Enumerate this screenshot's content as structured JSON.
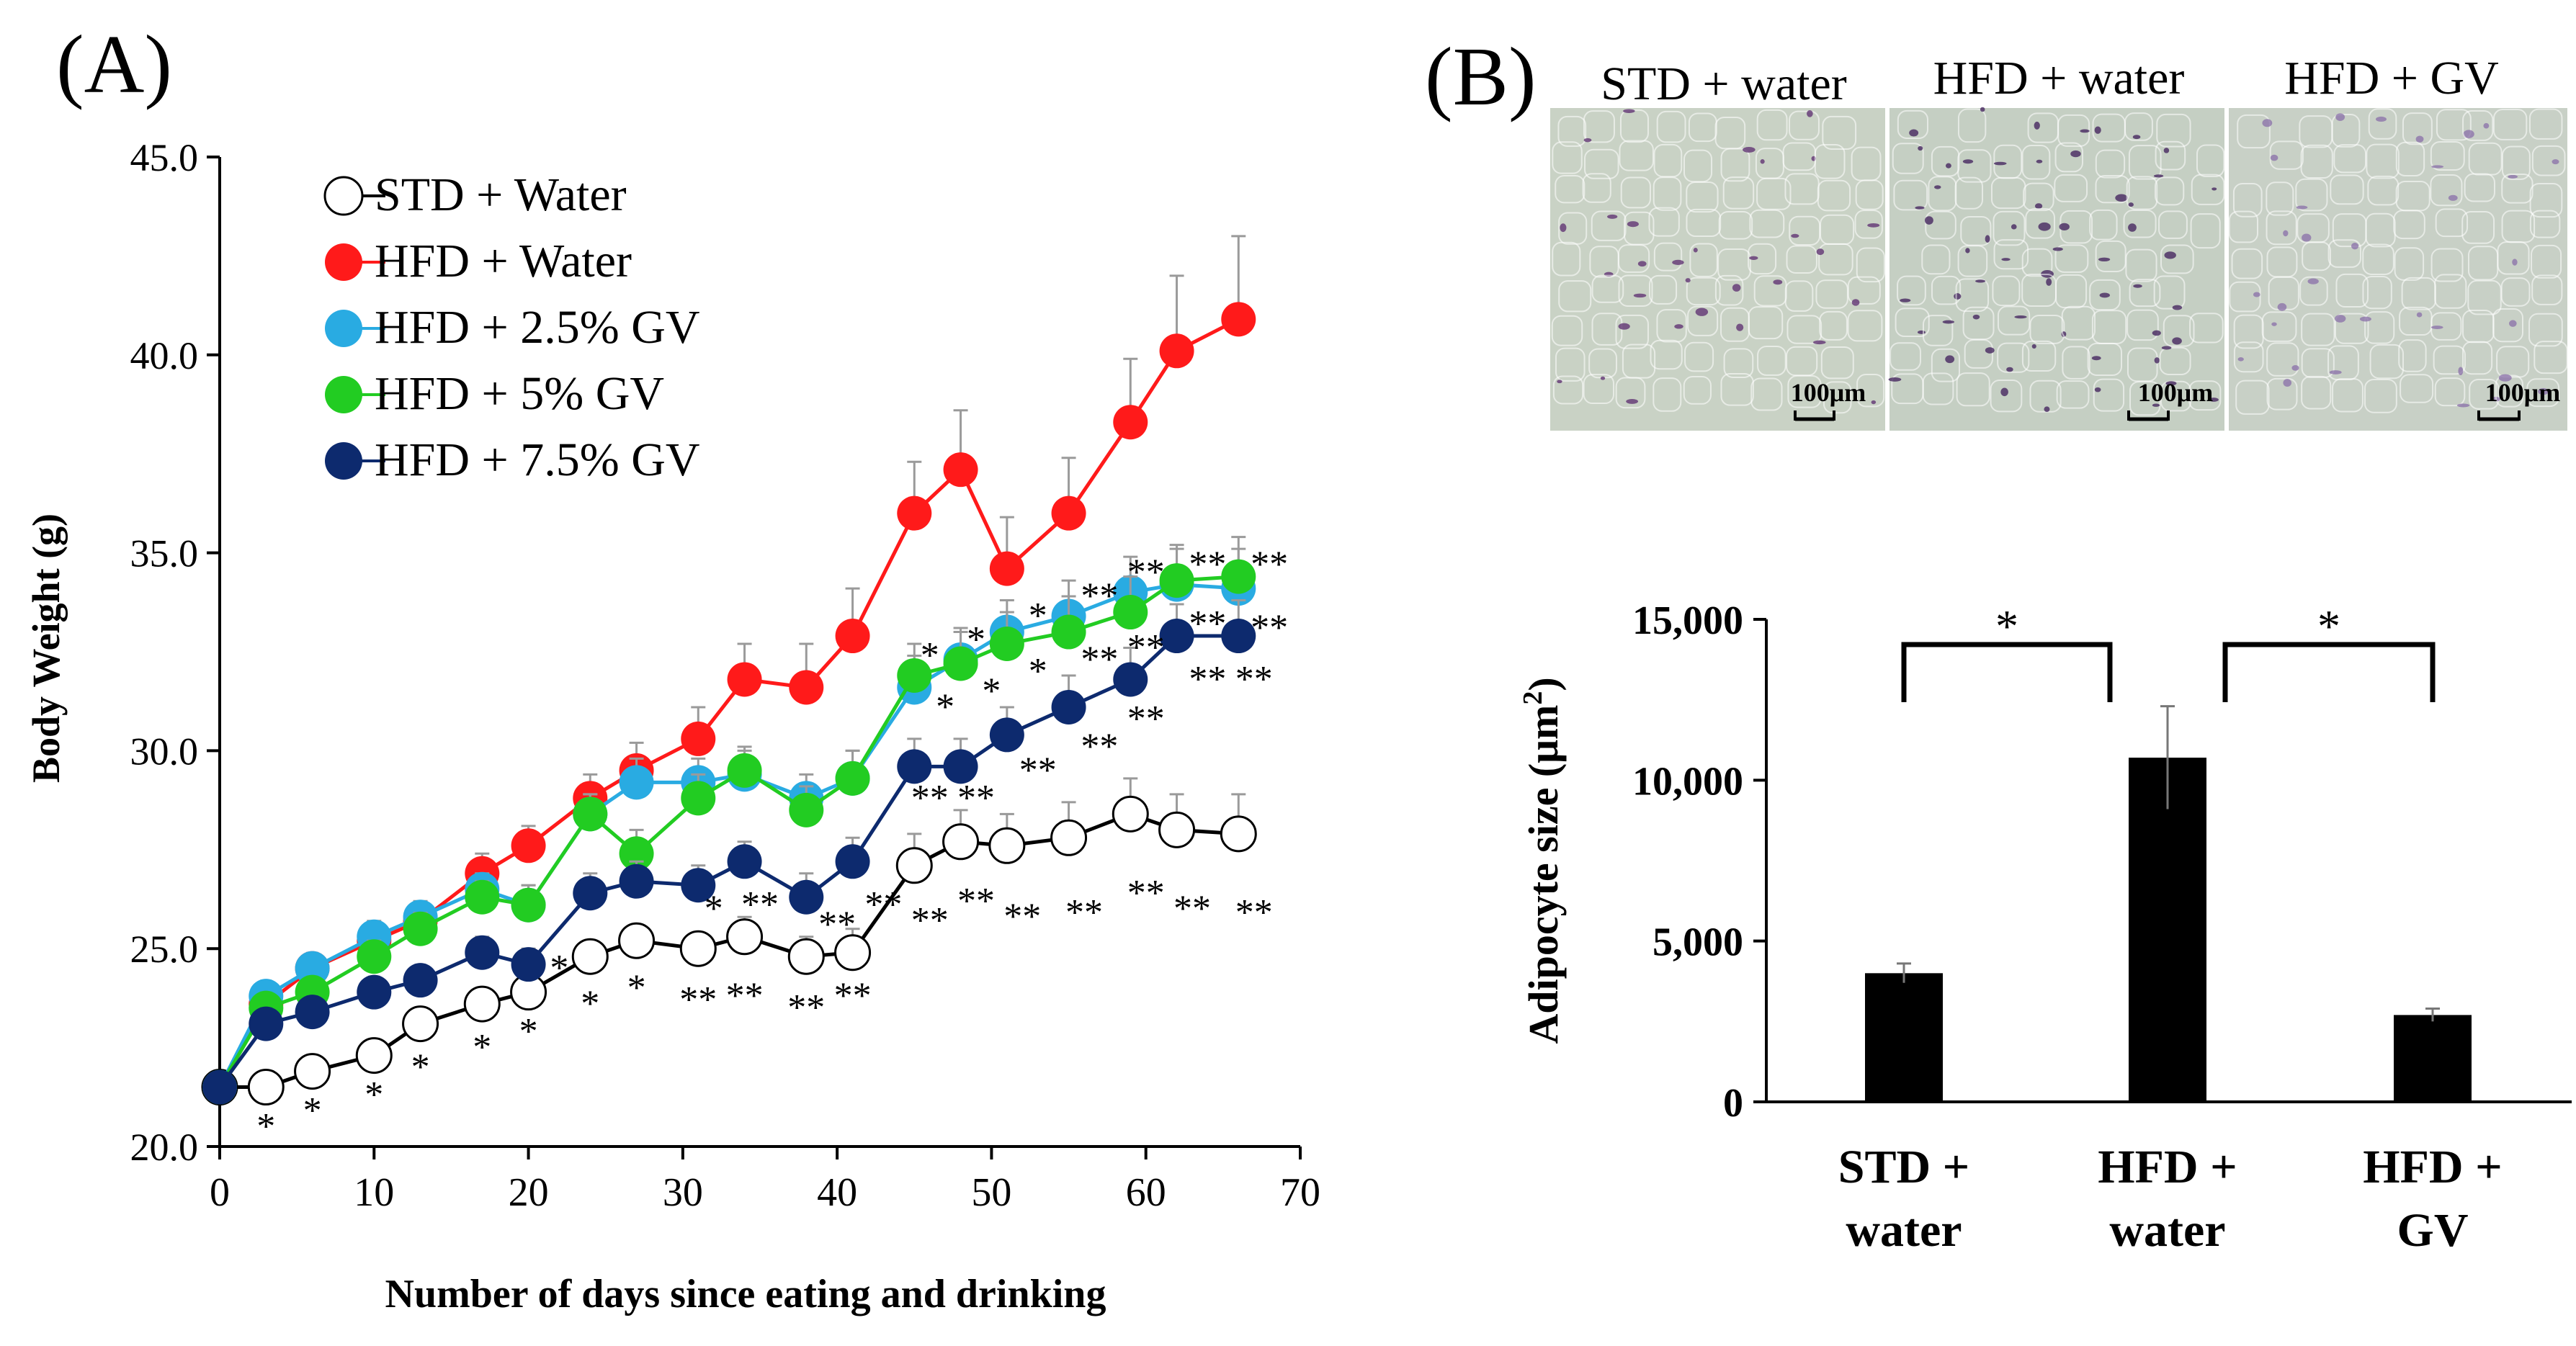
{
  "figure": {
    "panel_a_label": "(A)",
    "panel_b_label": "(B)"
  },
  "micrographs": [
    {
      "title": "STD + water",
      "scale_bar": "100μm",
      "tint": "#c9d2c5",
      "stain": "#5a2a6e",
      "density": 0.35
    },
    {
      "title": "HFD + water",
      "scale_bar": "100μm",
      "tint": "#c5cfc3",
      "stain": "#3d1c5a",
      "density": 0.7
    },
    {
      "title": "HFD + GV",
      "scale_bar": "100μm",
      "tint": "#c8d0c6",
      "stain": "#8a6fa8",
      "density": 0.45
    }
  ],
  "chart_data": [
    {
      "type": "line",
      "xlabel": "Number of days since eating and drinking",
      "ylabel": "Body Weight (g)",
      "xlim": [
        0,
        70
      ],
      "ylim": [
        20,
        45
      ],
      "xticks": [
        "0",
        "10",
        "20",
        "30",
        "40",
        "50",
        "60",
        "70"
      ],
      "yticks": [
        "20.0",
        "25.0",
        "30.0",
        "35.0",
        "40.0",
        "45.0"
      ],
      "legend_position": "top-left",
      "x": [
        0,
        3,
        6,
        10,
        13,
        17,
        20,
        24,
        27,
        31,
        34,
        38,
        41,
        45,
        48,
        51,
        55,
        59,
        62,
        66
      ],
      "series": [
        {
          "name": "STD + Water",
          "color": "#000000",
          "fill": "#ffffff",
          "line": "#000000",
          "values": [
            21.5,
            21.5,
            21.9,
            22.3,
            23.1,
            23.6,
            23.9,
            24.8,
            25.2,
            25.0,
            25.3,
            24.8,
            24.9,
            27.1,
            27.7,
            27.6,
            27.8,
            28.4,
            28.0,
            27.9
          ],
          "errors": [
            0,
            0.3,
            0.3,
            0.3,
            0.3,
            0.3,
            0.3,
            0.4,
            0.4,
            0.4,
            0.5,
            0.5,
            0.6,
            0.8,
            0.8,
            0.8,
            0.9,
            0.9,
            0.9,
            1.0
          ]
        },
        {
          "name": "HFD + Water",
          "color": "#ff1a1a",
          "fill": "#ff1a1a",
          "line": "#ff1a1a",
          "values": [
            21.5,
            23.6,
            24.5,
            25.2,
            25.7,
            26.9,
            27.6,
            28.8,
            29.5,
            30.3,
            31.8,
            31.6,
            32.9,
            36.0,
            37.1,
            34.6,
            36.0,
            38.3,
            40.1,
            40.9
          ],
          "errors": [
            0,
            0.3,
            0.3,
            0.4,
            0.4,
            0.5,
            0.5,
            0.6,
            0.7,
            0.8,
            0.9,
            1.1,
            1.2,
            1.3,
            1.5,
            1.3,
            1.4,
            1.6,
            1.9,
            2.1
          ]
        },
        {
          "name": "HFD + 2.5% GV",
          "color": "#29abe2",
          "fill": "#29abe2",
          "line": "#29abe2",
          "values": [
            21.5,
            23.8,
            24.5,
            25.3,
            25.8,
            26.5,
            26.1,
            28.4,
            29.2,
            29.2,
            29.4,
            28.8,
            29.3,
            31.6,
            32.3,
            33.0,
            33.4,
            34.0,
            34.2,
            34.1
          ],
          "errors": [
            0,
            0.3,
            0.3,
            0.4,
            0.4,
            0.4,
            0.5,
            0.5,
            0.6,
            0.6,
            0.6,
            0.6,
            0.7,
            0.8,
            0.8,
            0.8,
            0.9,
            0.9,
            0.9,
            1.0
          ]
        },
        {
          "name": "HFD + 5% GV",
          "color": "#22cc22",
          "fill": "#22cc22",
          "line": "#22cc22",
          "values": [
            21.5,
            23.5,
            23.9,
            24.8,
            25.5,
            26.3,
            26.1,
            28.4,
            27.4,
            28.8,
            29.5,
            28.5,
            29.3,
            31.9,
            32.2,
            32.7,
            33.0,
            33.5,
            34.3,
            34.4
          ],
          "errors": [
            0,
            0.3,
            0.3,
            0.4,
            0.4,
            0.4,
            0.5,
            0.5,
            0.6,
            0.6,
            0.6,
            0.6,
            0.7,
            0.8,
            0.8,
            0.8,
            0.9,
            0.9,
            0.9,
            1.0
          ]
        },
        {
          "name": "HFD + 7.5% GV",
          "color": "#0d2a6e",
          "fill": "#0d2a6e",
          "line": "#0d2a6e",
          "values": [
            21.5,
            23.1,
            23.4,
            23.9,
            24.2,
            24.9,
            24.6,
            26.4,
            26.7,
            26.6,
            27.2,
            26.3,
            27.2,
            29.6,
            29.6,
            30.4,
            31.1,
            31.8,
            32.9,
            32.9
          ],
          "errors": [
            0,
            0.3,
            0.3,
            0.3,
            0.3,
            0.4,
            0.4,
            0.5,
            0.5,
            0.5,
            0.5,
            0.6,
            0.6,
            0.7,
            0.7,
            0.7,
            0.8,
            0.8,
            0.8,
            0.9
          ]
        }
      ],
      "annotations": [
        {
          "text": "*",
          "x": 3,
          "y": 20.6
        },
        {
          "text": "*",
          "x": 6,
          "y": 21.0
        },
        {
          "text": "*",
          "x": 10,
          "y": 21.4
        },
        {
          "text": "*",
          "x": 13,
          "y": 22.1
        },
        {
          "text": "*",
          "x": 17,
          "y": 22.6
        },
        {
          "text": "*",
          "x": 20,
          "y": 23.0
        },
        {
          "text": "*",
          "x": 22,
          "y": 24.6
        },
        {
          "text": "*",
          "x": 24,
          "y": 23.7
        },
        {
          "text": "*",
          "x": 27,
          "y": 24.1
        },
        {
          "text": "*",
          "x": 32,
          "y": 26.1
        },
        {
          "text": "**",
          "x": 31,
          "y": 23.8
        },
        {
          "text": "**",
          "x": 34,
          "y": 23.9
        },
        {
          "text": "**",
          "x": 38,
          "y": 23.6
        },
        {
          "text": "**",
          "x": 41,
          "y": 23.9
        },
        {
          "text": "**",
          "x": 35,
          "y": 26.2
        },
        {
          "text": "**",
          "x": 40,
          "y": 25.7
        },
        {
          "text": "**",
          "x": 43,
          "y": 26.2
        },
        {
          "text": "**",
          "x": 46,
          "y": 25.8
        },
        {
          "text": "**",
          "x": 49,
          "y": 26.3
        },
        {
          "text": "**",
          "x": 52,
          "y": 25.9
        },
        {
          "text": "**",
          "x": 56,
          "y": 26.0
        },
        {
          "text": "**",
          "x": 60,
          "y": 26.5
        },
        {
          "text": "**",
          "x": 63,
          "y": 26.1
        },
        {
          "text": "**",
          "x": 67,
          "y": 26.0
        },
        {
          "text": "**",
          "x": 46,
          "y": 28.9
        },
        {
          "text": "**",
          "x": 49,
          "y": 28.9
        },
        {
          "text": "**",
          "x": 53,
          "y": 29.6
        },
        {
          "text": "**",
          "x": 57,
          "y": 30.2
        },
        {
          "text": "**",
          "x": 60,
          "y": 30.9
        },
        {
          "text": "**",
          "x": 64,
          "y": 31.9
        },
        {
          "text": "**",
          "x": 67,
          "y": 31.9
        },
        {
          "text": "*",
          "x": 46,
          "y": 32.5
        },
        {
          "text": "*",
          "x": 47,
          "y": 31.2
        },
        {
          "text": "*",
          "x": 49,
          "y": 32.9
        },
        {
          "text": "*",
          "x": 50,
          "y": 31.6
        },
        {
          "text": "*",
          "x": 53,
          "y": 33.5
        },
        {
          "text": "*",
          "x": 53,
          "y": 32.1
        },
        {
          "text": "**",
          "x": 57,
          "y": 34.0
        },
        {
          "text": "**",
          "x": 57,
          "y": 32.4
        },
        {
          "text": "**",
          "x": 60,
          "y": 34.6
        },
        {
          "text": "**",
          "x": 60,
          "y": 32.7
        },
        {
          "text": "**",
          "x": 64,
          "y": 34.8
        },
        {
          "text": "**",
          "x": 64,
          "y": 33.3
        },
        {
          "text": "**",
          "x": 68,
          "y": 34.8
        },
        {
          "text": "**",
          "x": 68,
          "y": 33.2
        }
      ]
    },
    {
      "type": "bar",
      "categories": [
        "STD + water",
        "HFD + water",
        "HFD + GV"
      ],
      "category_lines": [
        [
          "STD +",
          "water"
        ],
        [
          "HFD +",
          "water"
        ],
        [
          "HFD +",
          "GV"
        ]
      ],
      "values": [
        4000,
        10700,
        2700
      ],
      "errors": [
        300,
        1600,
        200
      ],
      "ylabel": "Adipocyte size (μm²)",
      "ylabel_base": "Adipocyte size (μm",
      "ylabel_sup": "2",
      "ylabel_close": ")",
      "ylim": [
        0,
        15000
      ],
      "yticks": [
        "0",
        "5,000",
        "10,000",
        "15,000"
      ],
      "significance": [
        {
          "from": 0,
          "to": 1,
          "label": "*"
        },
        {
          "from": 1,
          "to": 2,
          "label": "*"
        }
      ]
    }
  ]
}
